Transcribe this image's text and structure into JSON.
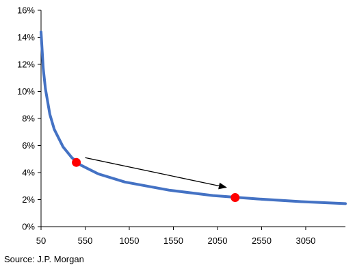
{
  "chart_data": {
    "type": "line",
    "title": "",
    "xlabel": "",
    "ylabel": "",
    "xlim": [
      50,
      3500
    ],
    "ylim": [
      0,
      16
    ],
    "x_ticks": [
      50,
      550,
      1050,
      1550,
      2050,
      2550,
      3050
    ],
    "x_tick_labels": [
      "50",
      "550",
      "1050",
      "1550",
      "2050",
      "2550",
      "3050"
    ],
    "y_ticks": [
      0,
      2,
      4,
      6,
      8,
      10,
      12,
      14,
      16
    ],
    "y_tick_labels": [
      "0%",
      "2%",
      "4%",
      "6%",
      "8%",
      "10%",
      "12%",
      "14%",
      "16%"
    ],
    "grid": false,
    "legend": "none",
    "series": [
      {
        "color": "#4472C4",
        "x": [
          50,
          75,
          100,
          150,
          200,
          300,
          400,
          500,
          700,
          1000,
          1500,
          2000,
          2500,
          3000,
          3500
        ],
        "y": [
          14.4,
          11.7,
          10.2,
          8.3,
          7.2,
          5.9,
          5.1,
          4.55,
          3.9,
          3.3,
          2.7,
          2.3,
          2.05,
          1.85,
          1.7
        ]
      }
    ],
    "highlight_points": [
      {
        "x": 450,
        "y": 4.75,
        "color": "#FF0000"
      },
      {
        "x": 2250,
        "y": 2.15,
        "color": "#FF0000"
      }
    ],
    "arrow": {
      "from": {
        "x": 550,
        "y": 5.1
      },
      "to": {
        "x": 2150,
        "y": 2.9
      },
      "color": "#000000"
    }
  },
  "source_note": "Source: J.P. Morgan"
}
